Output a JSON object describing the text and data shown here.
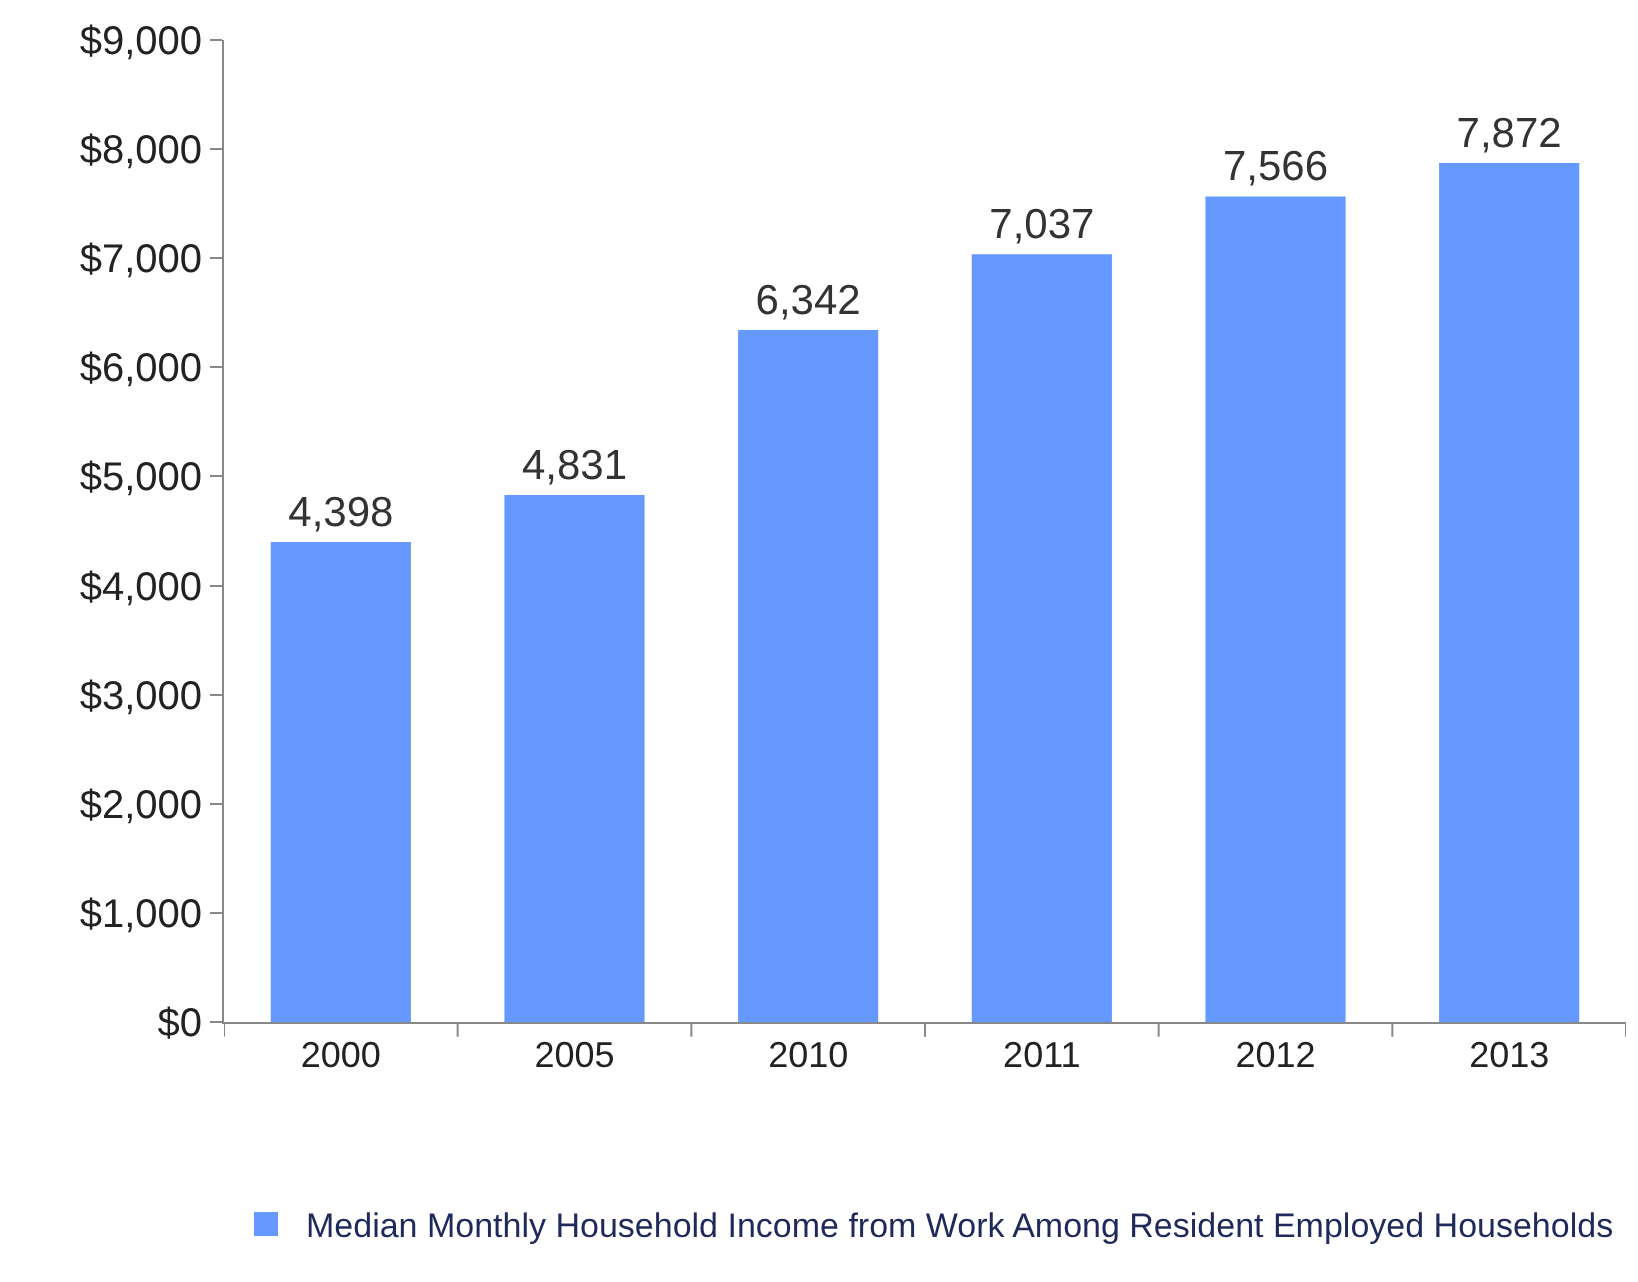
{
  "chart_data": {
    "type": "bar",
    "categories": [
      "2000",
      "2005",
      "2010",
      "2011",
      "2012",
      "2013"
    ],
    "series": [
      {
        "name": "Median Monthly Household Income from Work Among Resident Employed Households",
        "color": "#6699ff",
        "values": [
          4398,
          4831,
          6342,
          7037,
          7566,
          7872
        ],
        "value_labels": [
          "4,398",
          "4,831",
          "6,342",
          "7,037",
          "7,566",
          "7,872"
        ]
      }
    ],
    "ylim": [
      0,
      9000
    ],
    "yticks": [
      {
        "value": 0,
        "label": "$0"
      },
      {
        "value": 1000,
        "label": "$1,000"
      },
      {
        "value": 2000,
        "label": "$2,000"
      },
      {
        "value": 3000,
        "label": "$3,000"
      },
      {
        "value": 4000,
        "label": "$4,000"
      },
      {
        "value": 5000,
        "label": "$5,000"
      },
      {
        "value": 6000,
        "label": "$6,000"
      },
      {
        "value": 7000,
        "label": "$7,000"
      },
      {
        "value": 8000,
        "label": "$8,000"
      },
      {
        "value": 9000,
        "label": "$9,000"
      }
    ],
    "grid": false,
    "legend": "bottom"
  }
}
